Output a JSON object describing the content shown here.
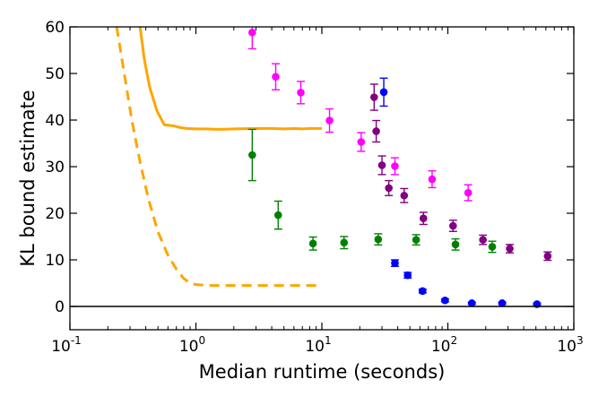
{
  "chart_data": {
    "type": "scatter",
    "title": "",
    "xlabel": "Median runtime (seconds)",
    "ylabel": "KL bound estimate",
    "xscale": "log",
    "xlim": [
      0.1,
      1000
    ],
    "ylim": [
      -5,
      60
    ],
    "grid": false,
    "legend": "none",
    "x_ticks": [
      {
        "base": "10",
        "exp": "-1",
        "value": 0.1
      },
      {
        "base": "10",
        "exp": "0",
        "value": 1
      },
      {
        "base": "10",
        "exp": "1",
        "value": 10
      },
      {
        "base": "10",
        "exp": "2",
        "value": 100
      },
      {
        "base": "10",
        "exp": "3",
        "value": 1000
      }
    ],
    "y_ticks": [
      0,
      10,
      20,
      30,
      40,
      50,
      60
    ],
    "hline": {
      "y": 0,
      "color": "#000000"
    },
    "lines": [
      {
        "style": "solid",
        "color": "#ffa500",
        "x": [
          0.36,
          0.39,
          0.43,
          0.49,
          0.56,
          0.65,
          0.75,
          0.85,
          1.0,
          1.2,
          1.5,
          2.0,
          3.0,
          4.0,
          5.0,
          6.0,
          7.0,
          8.0,
          10.0
        ],
        "y": [
          60,
          53,
          47,
          42,
          39,
          38.8,
          38.4,
          38.2,
          38.1,
          38.1,
          38.0,
          38.1,
          38.2,
          38.2,
          38.1,
          38.2,
          38.1,
          38.2,
          38.2
        ]
      },
      {
        "style": "dashed",
        "color": "#ffa500",
        "x": [
          0.235,
          0.27,
          0.31,
          0.36,
          0.42,
          0.5,
          0.6,
          0.7,
          0.8,
          0.9,
          1.0,
          1.3,
          2.0,
          3.0,
          5.0,
          7.0,
          10.0
        ],
        "y": [
          60,
          50,
          40,
          31,
          23,
          16,
          11,
          8,
          6,
          5,
          4.7,
          4.5,
          4.5,
          4.5,
          4.5,
          4.5,
          4.5
        ]
      }
    ],
    "series": [
      {
        "color": "#ff00ff",
        "x": [
          2.8,
          4.3,
          6.8,
          11.5,
          20.5,
          38,
          75,
          145
        ],
        "y": [
          58.8,
          49.3,
          45.9,
          39.9,
          35.3,
          30.1,
          27.3,
          24.4
        ],
        "err": [
          3.5,
          2.8,
          2.4,
          2.5,
          2.0,
          1.8,
          1.8,
          1.7
        ]
      },
      {
        "color": "#800080",
        "x": [
          26,
          27,
          30,
          34,
          45,
          64,
          110,
          190,
          310,
          620
        ],
        "y": [
          44.9,
          37.6,
          30.3,
          25.4,
          23.8,
          18.9,
          17.3,
          14.3,
          12.4,
          10.8
        ],
        "err": [
          2.8,
          2.3,
          2.0,
          1.6,
          1.5,
          1.3,
          1.2,
          1.0,
          0.9,
          0.9
        ]
      },
      {
        "color": "#0000ff",
        "x": [
          31,
          38,
          48,
          63,
          95,
          155,
          270,
          510
        ],
        "y": [
          46.0,
          9.3,
          6.7,
          3.3,
          1.3,
          0.7,
          0.7,
          0.5
        ],
        "err": [
          3.0,
          0.7,
          0.6,
          0.4,
          0.3,
          0.2,
          0.2,
          0.2
        ]
      },
      {
        "color": "#008000",
        "x": [
          2.8,
          4.5,
          8.5,
          15,
          28,
          56,
          115,
          225
        ],
        "y": [
          32.5,
          19.6,
          13.5,
          13.7,
          14.4,
          14.3,
          13.3,
          12.8
        ],
        "err": [
          5.5,
          3.0,
          1.4,
          1.3,
          1.2,
          1.1,
          1.2,
          1.2
        ]
      }
    ]
  }
}
